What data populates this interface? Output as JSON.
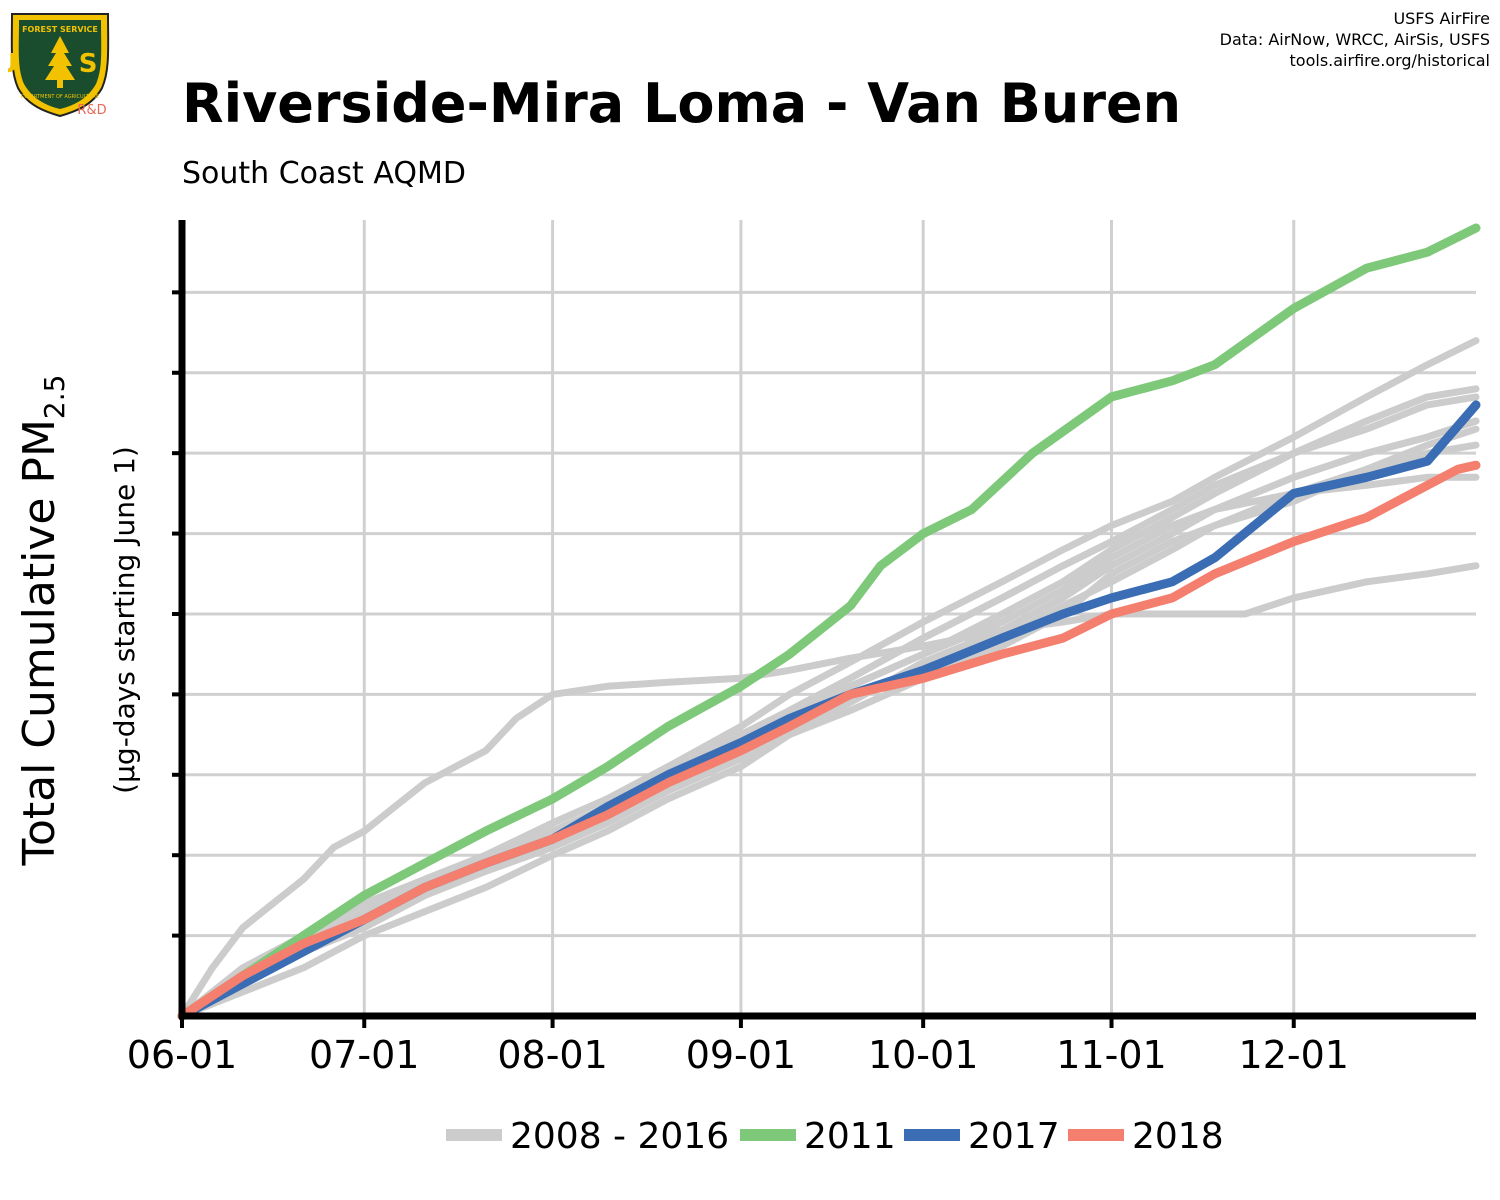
{
  "header": {
    "title": "Riverside-Mira Loma - Van Buren",
    "subtitle": "South Coast AQMD"
  },
  "credits": {
    "line1": "USFS AirFire",
    "line2": "Data: AirNow, WRCC, AirSis, USFS",
    "line3": "tools.airfire.org/historical"
  },
  "logo": {
    "icon": "usfs-shield-logo",
    "top_text": "FOREST SERVICE",
    "letters": "U S",
    "bottom_text": "DEPARTMENT OF AGRICULTURE",
    "badge": "R&D",
    "colors": {
      "shield": "#1a4d2e",
      "rim": "#f2c200",
      "badge": "#e8685a"
    }
  },
  "chart_data": {
    "type": "line",
    "title": "Riverside-Mira Loma - Van Buren",
    "subtitle": "South Coast AQMD",
    "ylabel": "Total Cumulative PM",
    "ylabel_subscript": "2.5",
    "ylabel_secondary": "(µg-days starting June 1)",
    "xlabel": "",
    "x_ticks": [
      "06-01",
      "07-01",
      "08-01",
      "09-01",
      "10-01",
      "11-01",
      "12-01"
    ],
    "x_tick_days": [
      0,
      30,
      61,
      92,
      122,
      153,
      183
    ],
    "xlim": [
      0,
      213
    ],
    "ylim": [
      0,
      99
    ],
    "y_gridlines": [
      10,
      20,
      30,
      40,
      50,
      60,
      70,
      80,
      90
    ],
    "y_tick_labels_shown": false,
    "grid": true,
    "legend_position": "bottom",
    "legend": [
      {
        "label": "2008 - 2016",
        "color": "#cccccc"
      },
      {
        "label": "2011",
        "color": "#7ec87a"
      },
      {
        "label": "2017",
        "color": "#3a6db4"
      },
      {
        "label": "2018",
        "color": "#f47f6e"
      }
    ],
    "series": [
      {
        "group": "2008 - 2016",
        "color": "#cccccc",
        "x": [
          0,
          10,
          20,
          30,
          40,
          50,
          61,
          70,
          80,
          92,
          100,
          110,
          122,
          135,
          145,
          153,
          163,
          170,
          183,
          195,
          205,
          213
        ],
        "y": [
          0,
          6,
          10,
          14,
          17,
          20,
          24,
          27,
          31,
          36,
          40,
          44,
          49,
          54,
          58,
          61,
          64,
          67,
          72,
          77,
          81,
          84
        ]
      },
      {
        "group": "2008 - 2016",
        "color": "#cccccc",
        "x": [
          0,
          10,
          20,
          30,
          40,
          50,
          61,
          70,
          80,
          92,
          100,
          110,
          122,
          135,
          145,
          153,
          163,
          170,
          183,
          195,
          205,
          213
        ],
        "y": [
          0,
          5,
          9,
          13,
          17,
          20,
          23,
          26,
          30,
          34,
          37,
          41,
          45,
          50,
          54,
          58,
          62,
          65,
          70,
          74,
          77,
          78
        ]
      },
      {
        "group": "2008 - 2016",
        "color": "#cccccc",
        "x": [
          0,
          10,
          20,
          30,
          40,
          50,
          61,
          70,
          80,
          92,
          100,
          110,
          122,
          135,
          145,
          153,
          163,
          170,
          183,
          195,
          205,
          213
        ],
        "y": [
          0,
          4,
          8,
          12,
          16,
          19,
          22,
          25,
          29,
          34,
          38,
          42,
          47,
          52,
          56,
          59,
          63,
          66,
          70,
          73,
          76,
          77
        ]
      },
      {
        "group": "2008 - 2016",
        "color": "#cccccc",
        "x": [
          0,
          10,
          20,
          30,
          40,
          50,
          61,
          70,
          80,
          92,
          100,
          110,
          122,
          135,
          145,
          153,
          163,
          170,
          183,
          195,
          205,
          213
        ],
        "y": [
          0,
          5,
          9,
          13,
          17,
          20,
          24,
          27,
          30,
          34,
          38,
          41,
          45,
          49,
          53,
          57,
          61,
          63,
          67,
          70,
          72,
          74
        ]
      },
      {
        "group": "2008 - 2016",
        "color": "#cccccc",
        "x": [
          0,
          10,
          20,
          30,
          40,
          50,
          61,
          70,
          80,
          92,
          100,
          110,
          122,
          135,
          145,
          153,
          163,
          170,
          183,
          195,
          205,
          213
        ],
        "y": [
          0,
          4,
          8,
          11,
          15,
          18,
          21,
          24,
          28,
          32,
          35,
          39,
          44,
          48,
          52,
          56,
          60,
          63,
          67,
          70,
          72,
          74
        ]
      },
      {
        "group": "2008 - 2016",
        "color": "#cccccc",
        "x": [
          0,
          10,
          20,
          30,
          40,
          50,
          61,
          70,
          80,
          92,
          100,
          110,
          122,
          135,
          145,
          153,
          163,
          170,
          183,
          195,
          205,
          213
        ],
        "y": [
          0,
          4,
          8,
          12,
          15,
          19,
          22,
          26,
          29,
          33,
          36,
          40,
          43,
          47,
          51,
          54,
          58,
          61,
          64,
          68,
          71,
          73
        ]
      },
      {
        "group": "2008 - 2016",
        "color": "#cccccc",
        "x": [
          0,
          10,
          20,
          30,
          40,
          50,
          61,
          70,
          80,
          92,
          100,
          110,
          122,
          135,
          145,
          153,
          163,
          170,
          183,
          195,
          205,
          213
        ],
        "y": [
          0,
          3,
          6,
          10,
          13,
          16,
          20,
          23,
          27,
          31,
          35,
          38,
          42,
          46,
          50,
          55,
          59,
          61,
          65,
          68,
          70,
          71
        ]
      },
      {
        "group": "2008 - 2016",
        "color": "#cccccc",
        "x": [
          0,
          5,
          10,
          15,
          20,
          25,
          30,
          35,
          40,
          45,
          50,
          55,
          61,
          70,
          80,
          92,
          100,
          110,
          122,
          135,
          145,
          153,
          163,
          170,
          175,
          183,
          195,
          205,
          213
        ],
        "y": [
          0,
          6,
          11,
          14,
          17,
          21,
          23,
          26,
          29,
          31,
          33,
          37,
          40,
          41,
          41.5,
          42,
          43,
          44.5,
          46,
          48,
          49,
          50,
          50,
          50,
          50,
          52,
          54,
          55,
          56
        ]
      },
      {
        "group": "2008 - 2016",
        "color": "#cccccc",
        "x": [
          0,
          10,
          20,
          30,
          40,
          50,
          61,
          70,
          80,
          92,
          100,
          110,
          122,
          135,
          145,
          153,
          163,
          170,
          183,
          195,
          205,
          213
        ],
        "y": [
          0,
          4,
          8,
          12,
          16,
          20,
          24,
          27,
          31,
          35,
          38,
          42,
          47,
          52,
          56,
          59,
          61,
          63,
          65,
          66,
          67,
          67
        ]
      },
      {
        "group": "2011",
        "color": "#7ec87a",
        "x": [
          0,
          10,
          20,
          30,
          40,
          50,
          61,
          70,
          80,
          92,
          100,
          110,
          115,
          122,
          130,
          140,
          153,
          163,
          170,
          183,
          195,
          205,
          213
        ],
        "y": [
          0,
          5,
          10,
          15,
          19,
          23,
          27,
          31,
          36,
          41,
          45,
          51,
          56,
          60,
          63,
          70,
          77,
          79,
          81,
          88,
          93,
          95,
          98
        ]
      },
      {
        "group": "2017",
        "color": "#3a6db4",
        "x": [
          0,
          10,
          20,
          30,
          40,
          50,
          61,
          70,
          80,
          92,
          100,
          110,
          122,
          135,
          145,
          153,
          163,
          170,
          183,
          195,
          205,
          213
        ],
        "y": [
          0,
          4,
          8,
          12,
          16,
          19,
          22,
          26,
          30,
          34,
          37,
          40,
          43,
          47,
          50,
          52,
          54,
          57,
          65,
          67,
          69,
          76
        ]
      },
      {
        "group": "2018",
        "color": "#f47f6e",
        "x": [
          0,
          10,
          20,
          30,
          40,
          50,
          61,
          70,
          80,
          92,
          100,
          110,
          122,
          135,
          145,
          153,
          163,
          170,
          183,
          195,
          205,
          210,
          213
        ],
        "y": [
          0,
          5,
          9,
          12,
          16,
          19,
          22,
          25,
          29,
          33,
          36,
          40,
          42,
          45,
          47,
          50,
          52,
          55,
          59,
          62,
          66,
          68,
          68.5
        ]
      }
    ]
  }
}
